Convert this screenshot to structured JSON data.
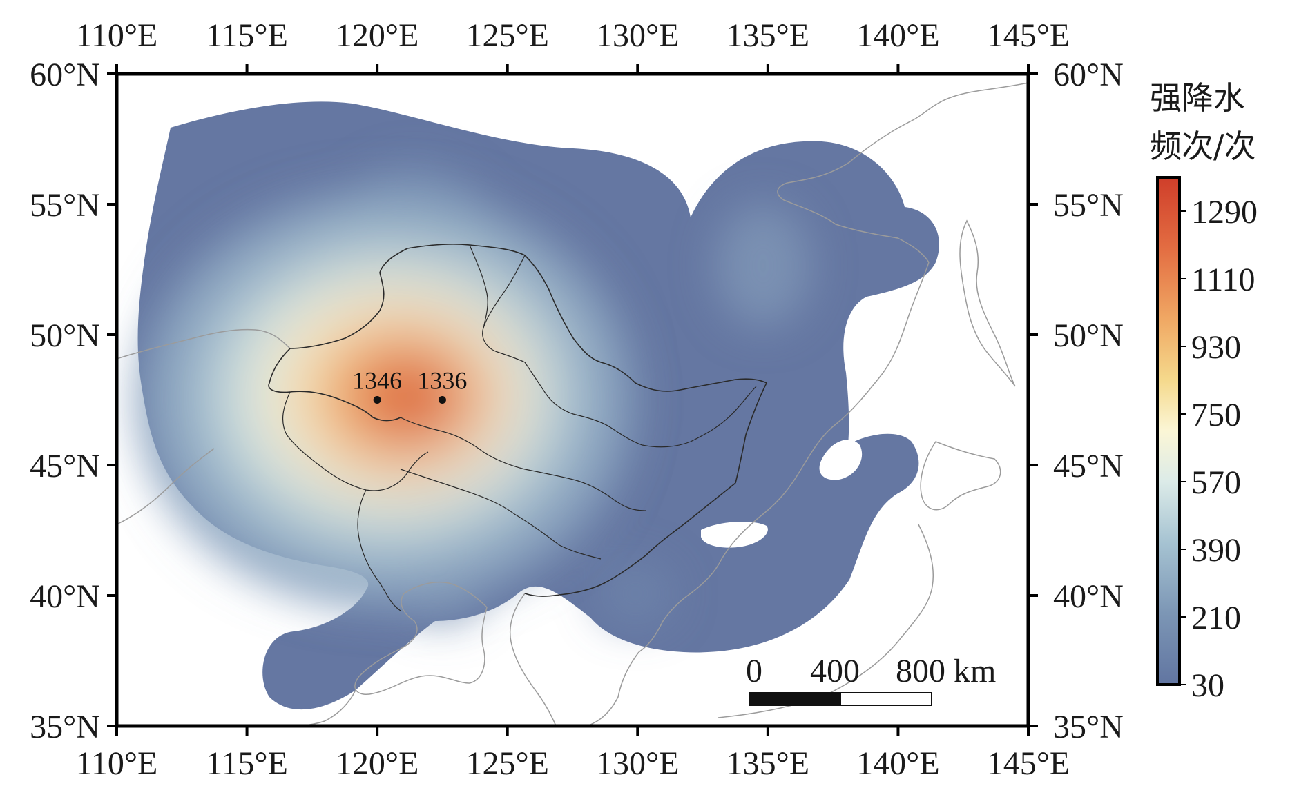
{
  "map": {
    "lon_range": [
      110,
      145
    ],
    "lat_range": [
      35,
      60
    ],
    "lon_ticks": [
      {
        "value": 110,
        "label": "110°E"
      },
      {
        "value": 115,
        "label": "115°E"
      },
      {
        "value": 120,
        "label": "120°E"
      },
      {
        "value": 125,
        "label": "125°E"
      },
      {
        "value": 130,
        "label": "130°E"
      },
      {
        "value": 135,
        "label": "135°E"
      },
      {
        "value": 140,
        "label": "140°E"
      },
      {
        "value": 145,
        "label": "145°E"
      }
    ],
    "lat_ticks": [
      {
        "value": 60,
        "label": "60°N"
      },
      {
        "value": 55,
        "label": "55°N"
      },
      {
        "value": 50,
        "label": "50°N"
      },
      {
        "value": 45,
        "label": "45°N"
      },
      {
        "value": 40,
        "label": "40°N"
      },
      {
        "value": 35,
        "label": "35°N"
      }
    ],
    "peaks": [
      {
        "lon": 120.0,
        "lat": 47.5,
        "label": "1346"
      },
      {
        "lon": 122.5,
        "lat": 47.5,
        "label": "1336"
      }
    ],
    "scale_bar": {
      "labels": [
        "0",
        "400",
        "800 km"
      ],
      "length_km": 800
    },
    "colors": {
      "low": "#6175a1",
      "mid_low": "#a9cad8",
      "mid": "#fbfbef",
      "mid_high": "#f4d889",
      "high": "#d6482d",
      "border": "#222222",
      "coast": "#9b9b9b"
    }
  },
  "colorbar": {
    "title_line1": "强降水",
    "title_line2": "频次/次",
    "labels": [
      "1290",
      "1110",
      "930",
      "750",
      "570",
      "390",
      "210",
      "30"
    ],
    "min": 30,
    "max": 1380
  }
}
